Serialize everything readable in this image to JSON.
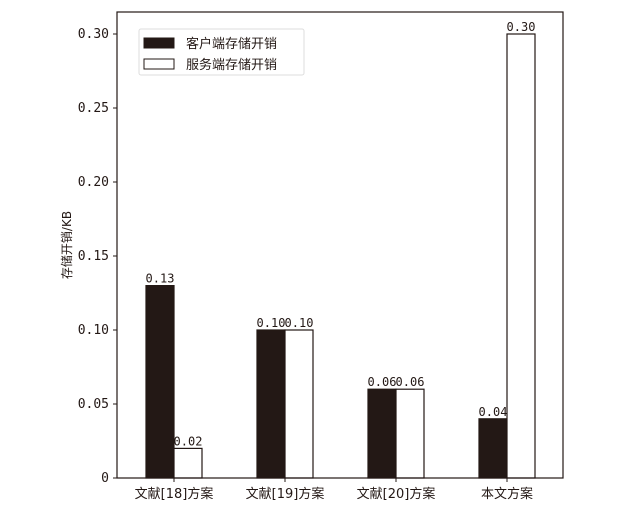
{
  "chart_data": {
    "type": "bar",
    "title": "",
    "xlabel": "",
    "ylabel": "存储开销/KB",
    "categories": [
      "文献[18]方案",
      "文献[19]方案",
      "文献[20]方案",
      "本文方案"
    ],
    "series": [
      {
        "name": "客户端存储开销",
        "values": [
          0.13,
          0.1,
          0.06,
          0.04
        ],
        "color": "#231815",
        "labels": [
          "0.13",
          "0.10",
          "0.06",
          "0.04"
        ]
      },
      {
        "name": "服务端存储开销",
        "values": [
          0.02,
          0.1,
          0.06,
          0.3
        ],
        "color": "#ffffff",
        "labels": [
          "0.02",
          "0.10",
          "0.06",
          "0.30"
        ]
      }
    ],
    "ylim": [
      0,
      0.315
    ],
    "yticks": [
      0,
      0.05,
      0.1,
      0.15,
      0.2,
      0.25,
      0.3
    ],
    "ytick_labels": [
      "0",
      "0.05",
      "0.10",
      "0.15",
      "0.20",
      "0.25",
      "0.30"
    ],
    "grid": false,
    "legend": "top-left"
  }
}
